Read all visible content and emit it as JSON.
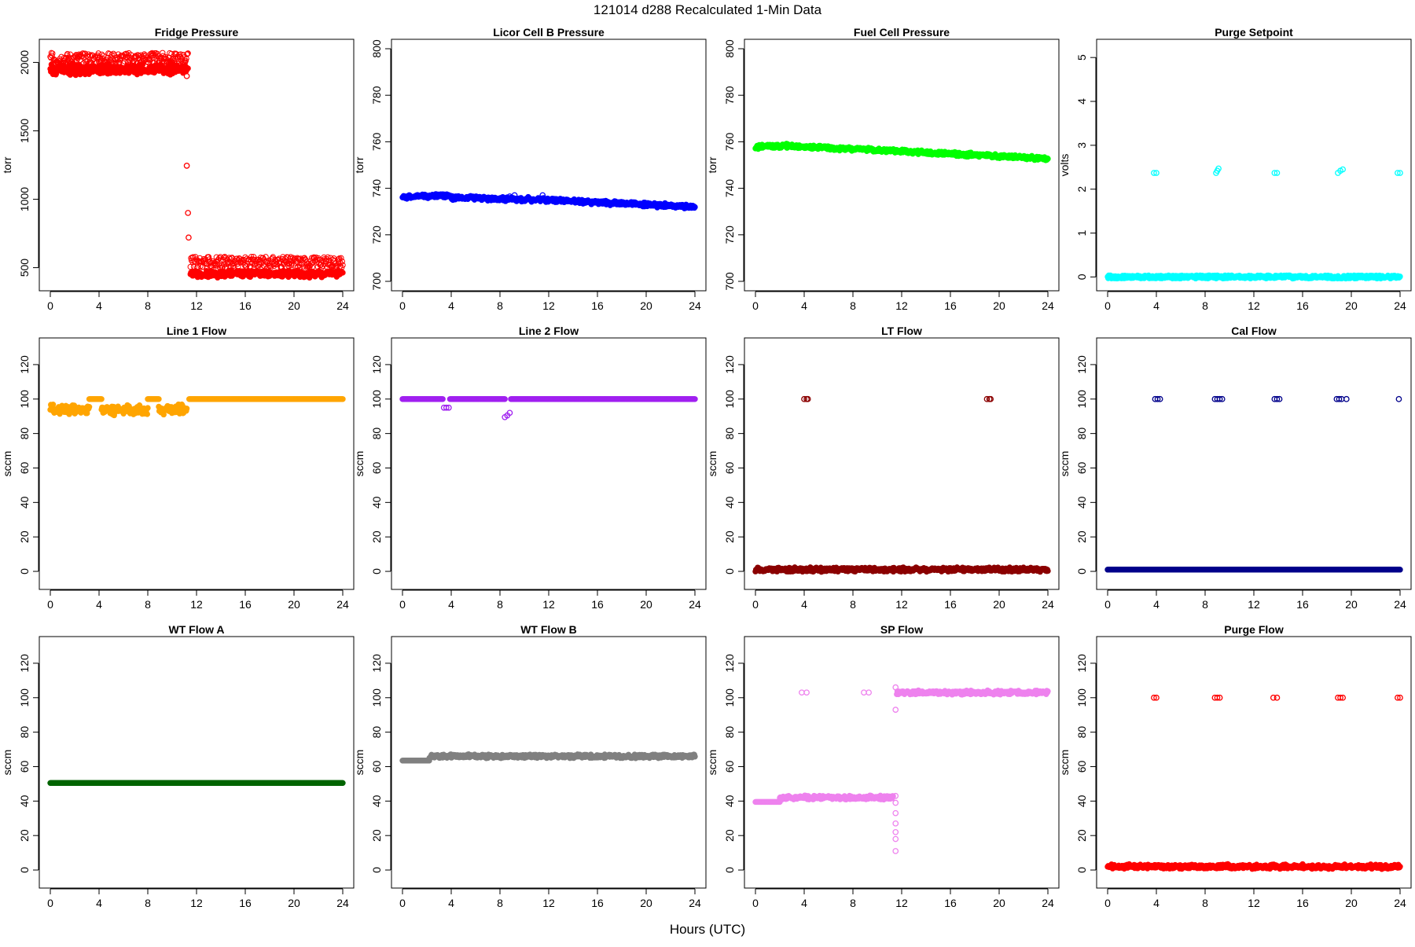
{
  "page": {
    "title": "121014   d288   Recalculated 1-Min Data",
    "xlabel": "Hours (UTC)"
  },
  "chart_data": [
    {
      "type": "scatter",
      "title": "Fridge Pressure",
      "ylabel": "torr",
      "color": "#ff0000",
      "xlim": [
        0,
        24
      ],
      "ylim": [
        400,
        2100
      ],
      "xticks": [
        0,
        4,
        8,
        12,
        16,
        20,
        24
      ],
      "yticks": [
        500,
        1000,
        1500,
        2000
      ],
      "segments": [
        {
          "x0": 0,
          "x1": 11.3,
          "y": 1950,
          "noise": 25,
          "w": 7,
          "filled": true
        },
        {
          "x0": 0,
          "x1": 11.3,
          "y": 2030,
          "noise": 40,
          "w": 1,
          "filled": false
        },
        {
          "x0": 11.5,
          "x1": 24,
          "y": 455,
          "noise": 10,
          "w": 7,
          "filled": true
        },
        {
          "x0": 11.5,
          "x1": 24,
          "y": 540,
          "noise": 40,
          "w": 1,
          "filled": false
        }
      ],
      "points": [
        [
          11.2,
          1245
        ],
        [
          11.3,
          900
        ],
        [
          11.35,
          720
        ],
        [
          11.2,
          1900
        ]
      ]
    },
    {
      "type": "scatter",
      "title": "Licor Cell B Pressure",
      "ylabel": "torr",
      "color": "#0000ff",
      "xlim": [
        0,
        24
      ],
      "ylim": [
        700,
        800
      ],
      "xticks": [
        0,
        4,
        8,
        12,
        16,
        20,
        24
      ],
      "yticks": [
        700,
        720,
        740,
        760,
        780,
        800
      ],
      "segments": [
        {
          "x0": 0,
          "x1": 4,
          "y0": 736.3,
          "y1": 737,
          "noise": 0.4,
          "w": 4,
          "filled": true
        },
        {
          "x0": 4,
          "x1": 12,
          "y0": 736,
          "y1": 735,
          "noise": 0.4,
          "w": 4,
          "filled": true
        },
        {
          "x0": 12,
          "x1": 24,
          "y0": 735,
          "y1": 732,
          "noise": 0.4,
          "w": 4,
          "filled": true
        }
      ],
      "points": [
        [
          8.8,
          736.5
        ],
        [
          9.2,
          737
        ],
        [
          11.5,
          737
        ]
      ]
    },
    {
      "type": "scatter",
      "title": "Fuel Cell Pressure",
      "ylabel": "torr",
      "color": "#00ff00",
      "xlim": [
        0,
        24
      ],
      "ylim": [
        700,
        800
      ],
      "xticks": [
        0,
        4,
        8,
        12,
        16,
        20,
        24
      ],
      "yticks": [
        700,
        720,
        740,
        760,
        780,
        800
      ],
      "segments": [
        {
          "x0": 0,
          "x1": 3,
          "y0": 757.8,
          "y1": 758.3,
          "noise": 0.3,
          "w": 4,
          "filled": true
        },
        {
          "x0": 3,
          "x1": 12,
          "y0": 758,
          "y1": 756,
          "noise": 0.3,
          "w": 4,
          "filled": true
        },
        {
          "x0": 12,
          "x1": 24,
          "y0": 756,
          "y1": 752.7,
          "noise": 0.3,
          "w": 4,
          "filled": true
        }
      ],
      "points": []
    },
    {
      "type": "scatter",
      "title": "Purge Setpoint",
      "ylabel": "volts",
      "color": "#00ffff",
      "xlim": [
        0,
        24
      ],
      "ylim": [
        -0.1,
        5.2
      ],
      "xticks": [
        0,
        4,
        8,
        12,
        16,
        20,
        24
      ],
      "yticks": [
        0,
        1,
        2,
        3,
        4,
        5
      ],
      "segments": [
        {
          "x0": 0,
          "x1": 24,
          "y": 0,
          "noise": 0,
          "w": 4,
          "filled": true
        }
      ],
      "points": [
        [
          3.8,
          2.37
        ],
        [
          4.0,
          2.37
        ],
        [
          8.9,
          2.37
        ],
        [
          9.0,
          2.42
        ],
        [
          9.1,
          2.47
        ],
        [
          13.7,
          2.37
        ],
        [
          13.9,
          2.37
        ],
        [
          18.9,
          2.37
        ],
        [
          19.1,
          2.42
        ],
        [
          19.3,
          2.45
        ],
        [
          23.8,
          2.37
        ],
        [
          24.0,
          2.37
        ]
      ]
    },
    {
      "type": "scatter",
      "title": "Line 1 Flow",
      "ylabel": "sccm",
      "color": "#ffa500",
      "xlim": [
        0,
        24
      ],
      "ylim": [
        -5,
        130
      ],
      "xticks": [
        0,
        4,
        8,
        12,
        16,
        20,
        24
      ],
      "yticks": [
        0,
        20,
        40,
        60,
        80,
        100,
        120
      ],
      "segments": [
        {
          "x0": 0,
          "x1": 3.2,
          "y": 94,
          "noise": 1.8,
          "w": 6,
          "filled": true
        },
        {
          "x0": 3.2,
          "x1": 4.2,
          "y": 100,
          "noise": 0,
          "w": 1,
          "filled": true
        },
        {
          "x0": 4.2,
          "x1": 8.0,
          "y": 93.5,
          "noise": 2,
          "w": 6,
          "filled": true
        },
        {
          "x0": 8.0,
          "x1": 8.9,
          "y": 100,
          "noise": 0,
          "w": 1,
          "filled": true
        },
        {
          "x0": 8.9,
          "x1": 11.2,
          "y": 94,
          "noise": 2,
          "w": 6,
          "filled": true
        },
        {
          "x0": 11.4,
          "x1": 24,
          "y": 100,
          "noise": 0,
          "w": 1,
          "filled": true
        }
      ],
      "points": []
    },
    {
      "type": "scatter",
      "title": "Line 2 Flow",
      "ylabel": "sccm",
      "color": "#a020f0",
      "xlim": [
        0,
        24
      ],
      "ylim": [
        -5,
        130
      ],
      "xticks": [
        0,
        4,
        8,
        12,
        16,
        20,
        24
      ],
      "yticks": [
        0,
        20,
        40,
        60,
        80,
        100,
        120
      ],
      "segments": [
        {
          "x0": 0,
          "x1": 3.3,
          "y": 100,
          "noise": 0,
          "w": 1,
          "filled": true
        },
        {
          "x0": 3.9,
          "x1": 8.4,
          "y": 100,
          "noise": 0,
          "w": 1,
          "filled": true
        },
        {
          "x0": 8.9,
          "x1": 24,
          "y": 100,
          "noise": 0,
          "w": 1,
          "filled": true
        }
      ],
      "points": [
        [
          3.4,
          95
        ],
        [
          3.6,
          95
        ],
        [
          3.8,
          95
        ],
        [
          8.4,
          89.5
        ],
        [
          8.6,
          90.5
        ],
        [
          8.8,
          92
        ]
      ]
    },
    {
      "type": "scatter",
      "title": "LT Flow",
      "ylabel": "sccm",
      "color": "#8b0000",
      "xlim": [
        0,
        24
      ],
      "ylim": [
        -5,
        130
      ],
      "xticks": [
        0,
        4,
        8,
        12,
        16,
        20,
        24
      ],
      "yticks": [
        0,
        20,
        40,
        60,
        80,
        100,
        120
      ],
      "segments": [
        {
          "x0": 0,
          "x1": 24,
          "y": 1,
          "noise": 0.5,
          "w": 4,
          "filled": true
        }
      ],
      "points": [
        [
          4.0,
          100
        ],
        [
          4.2,
          100
        ],
        [
          4.3,
          100
        ],
        [
          19.0,
          100
        ],
        [
          19.2,
          100
        ],
        [
          19.3,
          100
        ]
      ]
    },
    {
      "type": "scatter",
      "title": "Cal Flow",
      "ylabel": "sccm",
      "color": "#00008b",
      "xlim": [
        0,
        24
      ],
      "ylim": [
        -5,
        130
      ],
      "xticks": [
        0,
        4,
        8,
        12,
        16,
        20,
        24
      ],
      "yticks": [
        0,
        20,
        40,
        60,
        80,
        100,
        120
      ],
      "segments": [
        {
          "x0": 0,
          "x1": 24,
          "y": 1,
          "noise": 0,
          "w": 1,
          "filled": true
        }
      ],
      "points": [
        [
          3.9,
          100
        ],
        [
          4.1,
          100
        ],
        [
          4.3,
          100
        ],
        [
          8.8,
          100
        ],
        [
          9.0,
          100
        ],
        [
          9.2,
          100
        ],
        [
          9.4,
          100
        ],
        [
          13.7,
          100
        ],
        [
          13.9,
          100
        ],
        [
          14.1,
          100
        ],
        [
          18.8,
          100
        ],
        [
          19.0,
          100
        ],
        [
          19.2,
          100
        ],
        [
          19.6,
          100
        ],
        [
          23.9,
          100
        ]
      ]
    },
    {
      "type": "scatter",
      "title": "WT Flow A",
      "ylabel": "sccm",
      "color": "#006400",
      "xlim": [
        0,
        24
      ],
      "ylim": [
        -5,
        130
      ],
      "xticks": [
        0,
        4,
        8,
        12,
        16,
        20,
        24
      ],
      "yticks": [
        0,
        20,
        40,
        60,
        80,
        100,
        120
      ],
      "segments": [
        {
          "x0": 0,
          "x1": 24,
          "y": 50.5,
          "noise": 0,
          "w": 1,
          "filled": true
        }
      ],
      "points": []
    },
    {
      "type": "scatter",
      "title": "WT Flow B",
      "ylabel": "sccm",
      "color": "#808080",
      "xlim": [
        0,
        24
      ],
      "ylim": [
        -5,
        130
      ],
      "xticks": [
        0,
        4,
        8,
        12,
        16,
        20,
        24
      ],
      "yticks": [
        0,
        20,
        40,
        60,
        80,
        100,
        120
      ],
      "segments": [
        {
          "x0": 0,
          "x1": 2.2,
          "y": 63.5,
          "noise": 0,
          "w": 1,
          "filled": true
        },
        {
          "x0": 2.2,
          "x1": 24,
          "y": 66,
          "noise": 0.3,
          "w": 4,
          "filled": true
        }
      ],
      "points": []
    },
    {
      "type": "scatter",
      "title": "SP Flow",
      "ylabel": "sccm",
      "color": "#ee82ee",
      "xlim": [
        0,
        24
      ],
      "ylim": [
        -5,
        130
      ],
      "xticks": [
        0,
        4,
        8,
        12,
        16,
        20,
        24
      ],
      "yticks": [
        0,
        20,
        40,
        60,
        80,
        100,
        120
      ],
      "segments": [
        {
          "x0": 0,
          "x1": 2,
          "y": 39.5,
          "noise": 0,
          "w": 1,
          "filled": true
        },
        {
          "x0": 2,
          "x1": 11.3,
          "y": 42,
          "noise": 0.5,
          "w": 4,
          "filled": true
        },
        {
          "x0": 11.6,
          "x1": 24,
          "y": 103,
          "noise": 0.5,
          "w": 4,
          "filled": true
        }
      ],
      "points": [
        [
          3.8,
          103
        ],
        [
          4.2,
          103
        ],
        [
          8.9,
          103
        ],
        [
          9.3,
          103
        ],
        [
          11.5,
          43
        ],
        [
          11.5,
          39
        ],
        [
          11.5,
          33
        ],
        [
          11.5,
          27
        ],
        [
          11.5,
          22
        ],
        [
          11.5,
          18
        ],
        [
          11.5,
          11
        ],
        [
          11.5,
          93
        ],
        [
          11.5,
          106
        ]
      ]
    },
    {
      "type": "scatter",
      "title": "Purge Flow",
      "ylabel": "sccm",
      "color": "#ff0000",
      "xlim": [
        0,
        24
      ],
      "ylim": [
        -5,
        130
      ],
      "xticks": [
        0,
        4,
        8,
        12,
        16,
        20,
        24
      ],
      "yticks": [
        0,
        20,
        40,
        60,
        80,
        100,
        120
      ],
      "segments": [
        {
          "x0": 0,
          "x1": 24,
          "y": 2,
          "noise": 0.6,
          "w": 4,
          "filled": true
        }
      ],
      "points": [
        [
          3.8,
          100
        ],
        [
          4.0,
          100
        ],
        [
          8.8,
          100
        ],
        [
          9.0,
          100
        ],
        [
          9.2,
          100
        ],
        [
          13.6,
          100
        ],
        [
          13.9,
          100
        ],
        [
          18.9,
          100
        ],
        [
          19.1,
          100
        ],
        [
          19.3,
          100
        ],
        [
          23.8,
          100
        ],
        [
          24.0,
          100
        ]
      ]
    }
  ]
}
